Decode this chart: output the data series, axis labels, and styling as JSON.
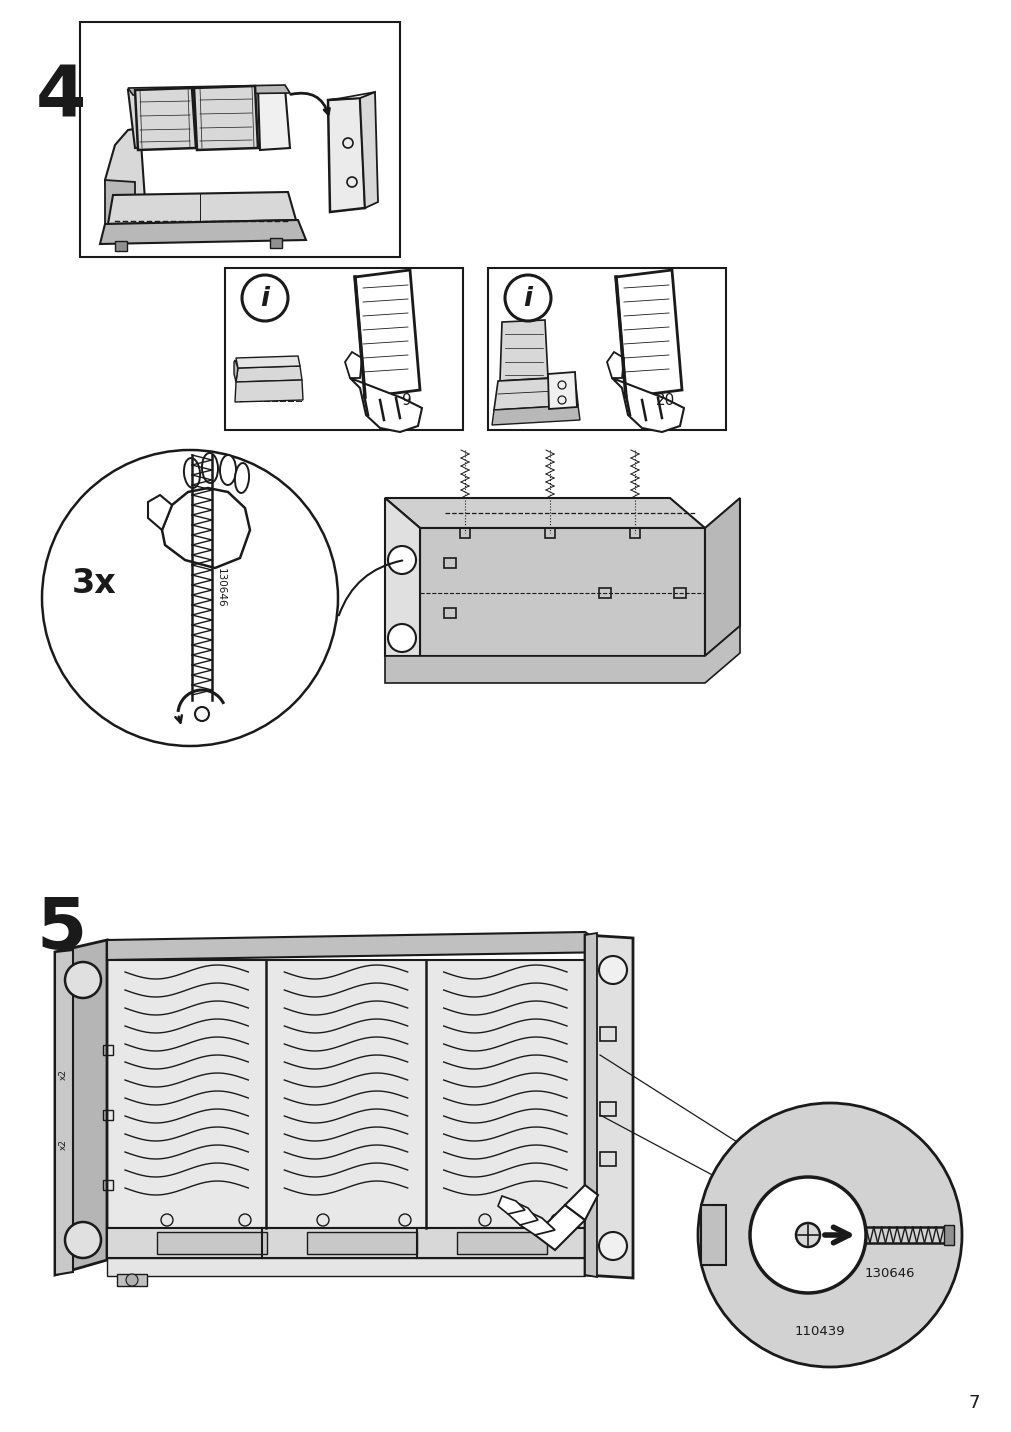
{
  "page_number": "7",
  "background_color": "#ffffff",
  "step4_label": "4",
  "step5_label": "5",
  "info_ref1": "9",
  "info_ref2": "20",
  "part_code1": "130646",
  "part_code2": "110439",
  "repeat_label": "3x",
  "line_color": "#1a1a1a",
  "fill_light": "#d8d8d8",
  "fill_medium": "#b8b8b8",
  "fill_dark": "#909090",
  "fill_white": "#ffffff",
  "circle_fill": "#d0d0d0",
  "border_color": "#1a1a1a"
}
